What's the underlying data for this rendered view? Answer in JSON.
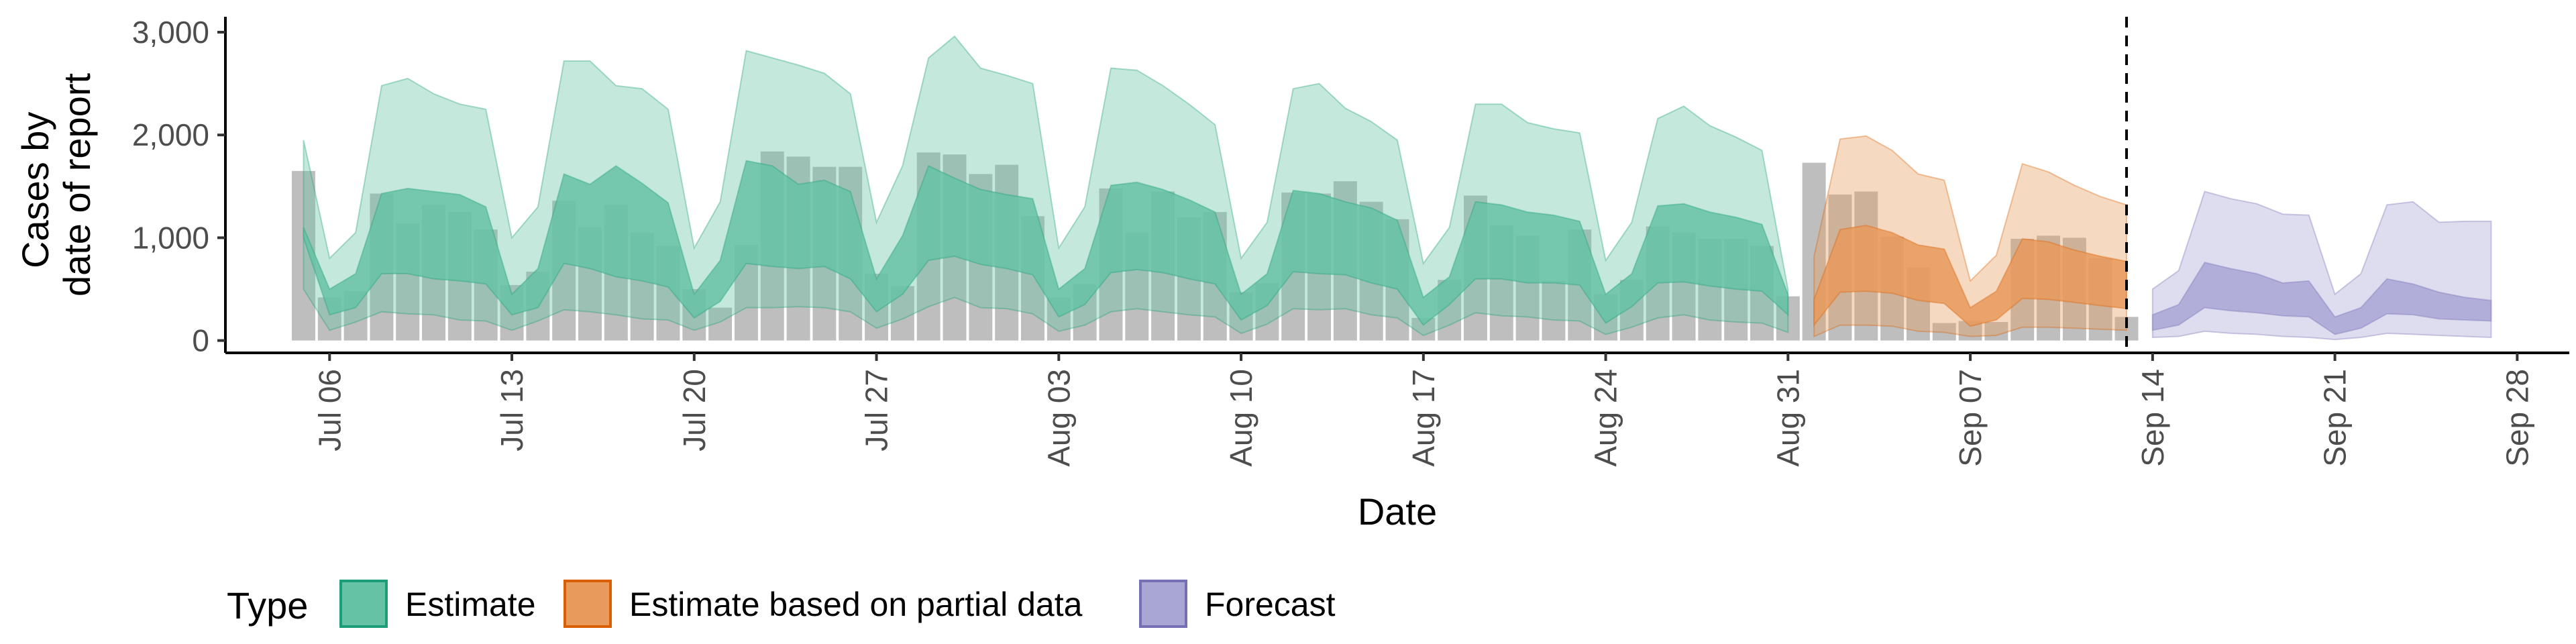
{
  "chart_data": {
    "type": "area",
    "xlabel": "Date",
    "ylabel_lines": [
      "Cases by",
      "date of report"
    ],
    "ylim": [
      -120,
      3150
    ],
    "xlim": [
      "2020-07-02",
      "2020-09-30"
    ],
    "y_ticks": [
      0,
      1000,
      2000,
      3000
    ],
    "y_tick_labels": [
      "0",
      "1,000",
      "2,000",
      "3,000"
    ],
    "x_ticks": [
      "2020-07-06",
      "2020-07-13",
      "2020-07-20",
      "2020-07-27",
      "2020-08-03",
      "2020-08-10",
      "2020-08-17",
      "2020-08-24",
      "2020-08-31",
      "2020-09-07",
      "2020-09-14",
      "2020-09-21",
      "2020-09-28"
    ],
    "x_tick_labels": [
      "Jul 06",
      "Jul 13",
      "Jul 20",
      "Jul 27",
      "Aug 03",
      "Aug 10",
      "Aug 17",
      "Aug 24",
      "Aug 31",
      "Sep 07",
      "Sep 14",
      "Sep 21",
      "Sep 28"
    ],
    "grid": false,
    "vline": "2020-09-13",
    "legend": {
      "title": "Type",
      "position": "bottom",
      "entries": [
        {
          "label": "Estimate",
          "fill": "#66c2a5",
          "stroke": "#1b9e77"
        },
        {
          "label": "Estimate based on partial data",
          "fill": "#e89a5c",
          "stroke": "#d95f02"
        },
        {
          "label": "Forecast",
          "fill": "#a9a6d6",
          "stroke": "#7570b3"
        }
      ]
    },
    "bars": {
      "color": "#b3b3b3",
      "x": [
        "2020-07-05",
        "2020-07-06",
        "2020-07-07",
        "2020-07-08",
        "2020-07-09",
        "2020-07-10",
        "2020-07-11",
        "2020-07-12",
        "2020-07-13",
        "2020-07-14",
        "2020-07-15",
        "2020-07-16",
        "2020-07-17",
        "2020-07-18",
        "2020-07-19",
        "2020-07-20",
        "2020-07-21",
        "2020-07-22",
        "2020-07-23",
        "2020-07-24",
        "2020-07-25",
        "2020-07-26",
        "2020-07-27",
        "2020-07-28",
        "2020-07-29",
        "2020-07-30",
        "2020-07-31",
        "2020-08-01",
        "2020-08-02",
        "2020-08-03",
        "2020-08-04",
        "2020-08-05",
        "2020-08-06",
        "2020-08-07",
        "2020-08-08",
        "2020-08-09",
        "2020-08-10",
        "2020-08-11",
        "2020-08-12",
        "2020-08-13",
        "2020-08-14",
        "2020-08-15",
        "2020-08-16",
        "2020-08-17",
        "2020-08-18",
        "2020-08-19",
        "2020-08-20",
        "2020-08-21",
        "2020-08-22",
        "2020-08-23",
        "2020-08-24",
        "2020-08-25",
        "2020-08-26",
        "2020-08-27",
        "2020-08-28",
        "2020-08-29",
        "2020-08-30",
        "2020-08-31",
        "2020-09-01",
        "2020-09-02",
        "2020-09-03",
        "2020-09-04",
        "2020-09-05",
        "2020-09-06",
        "2020-09-07",
        "2020-09-08",
        "2020-09-09",
        "2020-09-10",
        "2020-09-11",
        "2020-09-12",
        "2020-09-13"
      ],
      "values": [
        1650,
        420,
        480,
        1430,
        1140,
        1320,
        1250,
        1080,
        540,
        670,
        1360,
        1100,
        1320,
        1050,
        920,
        500,
        320,
        930,
        1840,
        1790,
        1690,
        1690,
        650,
        530,
        1830,
        1810,
        1620,
        1710,
        1210,
        420,
        550,
        1480,
        1050,
        1450,
        1200,
        1250,
        470,
        560,
        1440,
        1430,
        1550,
        1350,
        1180,
        220,
        590,
        1410,
        1120,
        1020,
        580,
        1080,
        450,
        590,
        1110,
        1050,
        990,
        990,
        920,
        430,
        1730,
        1420,
        1450,
        1010,
        710,
        170,
        190,
        180,
        990,
        1020,
        1000,
        800,
        230
      ]
    },
    "series": [
      {
        "name": "Estimate",
        "fill": "#66c2a5",
        "stroke": "#1b9e77",
        "x": [
          "2020-07-05",
          "2020-07-06",
          "2020-07-07",
          "2020-07-08",
          "2020-07-09",
          "2020-07-10",
          "2020-07-11",
          "2020-07-12",
          "2020-07-13",
          "2020-07-14",
          "2020-07-15",
          "2020-07-16",
          "2020-07-17",
          "2020-07-18",
          "2020-07-19",
          "2020-07-20",
          "2020-07-21",
          "2020-07-22",
          "2020-07-23",
          "2020-07-24",
          "2020-07-25",
          "2020-07-26",
          "2020-07-27",
          "2020-07-28",
          "2020-07-29",
          "2020-07-30",
          "2020-07-31",
          "2020-08-01",
          "2020-08-02",
          "2020-08-03",
          "2020-08-04",
          "2020-08-05",
          "2020-08-06",
          "2020-08-07",
          "2020-08-08",
          "2020-08-09",
          "2020-08-10",
          "2020-08-11",
          "2020-08-12",
          "2020-08-13",
          "2020-08-14",
          "2020-08-15",
          "2020-08-16",
          "2020-08-17",
          "2020-08-18",
          "2020-08-19",
          "2020-08-20",
          "2020-08-21",
          "2020-08-22",
          "2020-08-23",
          "2020-08-24",
          "2020-08-25",
          "2020-08-26",
          "2020-08-27",
          "2020-08-28",
          "2020-08-29",
          "2020-08-30",
          "2020-08-31"
        ],
        "lower90": [
          500,
          100,
          180,
          280,
          260,
          250,
          200,
          190,
          100,
          190,
          300,
          280,
          250,
          210,
          200,
          100,
          180,
          320,
          320,
          330,
          320,
          280,
          120,
          210,
          330,
          420,
          320,
          310,
          260,
          90,
          150,
          280,
          310,
          280,
          250,
          230,
          70,
          160,
          310,
          300,
          310,
          250,
          220,
          50,
          150,
          270,
          240,
          230,
          200,
          190,
          60,
          130,
          220,
          250,
          200,
          180,
          170,
          80
        ],
        "upper90": [
          1950,
          800,
          1050,
          2480,
          2550,
          2400,
          2300,
          2250,
          1000,
          1300,
          2720,
          2720,
          2480,
          2450,
          2250,
          900,
          1350,
          2820,
          2750,
          2680,
          2600,
          2400,
          1150,
          1700,
          2750,
          2960,
          2650,
          2580,
          2500,
          900,
          1300,
          2650,
          2630,
          2480,
          2300,
          2100,
          800,
          1150,
          2450,
          2500,
          2260,
          2130,
          1950,
          750,
          1100,
          2300,
          2300,
          2120,
          2060,
          2020,
          780,
          1150,
          2160,
          2280,
          2090,
          1980,
          1850,
          500
        ],
        "lower50": [
          1000,
          250,
          320,
          650,
          650,
          600,
          580,
          550,
          250,
          320,
          750,
          700,
          620,
          580,
          520,
          220,
          380,
          750,
          720,
          700,
          720,
          600,
          280,
          450,
          780,
          820,
          740,
          700,
          640,
          230,
          350,
          660,
          690,
          660,
          600,
          550,
          200,
          340,
          670,
          650,
          640,
          560,
          500,
          150,
          350,
          600,
          600,
          560,
          560,
          540,
          170,
          330,
          560,
          570,
          530,
          500,
          480,
          250
        ],
        "upper50": [
          1100,
          500,
          650,
          1430,
          1480,
          1450,
          1420,
          1300,
          450,
          700,
          1620,
          1520,
          1700,
          1530,
          1340,
          450,
          780,
          1750,
          1700,
          1520,
          1560,
          1450,
          600,
          1020,
          1700,
          1580,
          1470,
          1420,
          1380,
          500,
          700,
          1510,
          1540,
          1470,
          1370,
          1250,
          450,
          650,
          1460,
          1430,
          1350,
          1290,
          1170,
          420,
          620,
          1350,
          1320,
          1250,
          1220,
          1160,
          450,
          650,
          1310,
          1330,
          1250,
          1200,
          1130,
          450
        ]
      },
      {
        "name": "Estimate based on partial data",
        "fill": "#e89a5c",
        "stroke": "#d95f02",
        "x": [
          "2020-09-01",
          "2020-09-02",
          "2020-09-03",
          "2020-09-04",
          "2020-09-05",
          "2020-09-06",
          "2020-09-07",
          "2020-09-08",
          "2020-09-09",
          "2020-09-10",
          "2020-09-11",
          "2020-09-12",
          "2020-09-13"
        ],
        "lower90": [
          40,
          150,
          150,
          140,
          90,
          80,
          40,
          50,
          130,
          130,
          120,
          110,
          100
        ],
        "upper90": [
          820,
          1960,
          1990,
          1850,
          1620,
          1560,
          580,
          830,
          1720,
          1640,
          1510,
          1400,
          1320
        ],
        "lower50": [
          150,
          470,
          480,
          460,
          390,
          360,
          140,
          200,
          410,
          400,
          370,
          340,
          310
        ],
        "upper50": [
          400,
          1080,
          1120,
          1050,
          930,
          890,
          320,
          480,
          990,
          960,
          880,
          820,
          770
        ]
      },
      {
        "name": "Forecast",
        "fill": "#a9a6d6",
        "stroke": "#7570b3",
        "x": [
          "2020-09-14",
          "2020-09-15",
          "2020-09-16",
          "2020-09-17",
          "2020-09-18",
          "2020-09-19",
          "2020-09-20",
          "2020-09-21",
          "2020-09-22",
          "2020-09-23",
          "2020-09-24",
          "2020-09-25",
          "2020-09-26",
          "2020-09-27"
        ],
        "lower90": [
          30,
          40,
          90,
          70,
          60,
          40,
          30,
          10,
          30,
          70,
          60,
          50,
          40,
          30
        ],
        "upper90": [
          500,
          680,
          1450,
          1380,
          1330,
          1230,
          1220,
          450,
          650,
          1320,
          1350,
          1150,
          1160,
          1160
        ],
        "lower50": [
          100,
          150,
          320,
          290,
          270,
          240,
          230,
          60,
          120,
          260,
          250,
          210,
          200,
          190
        ],
        "upper50": [
          250,
          350,
          760,
          700,
          650,
          560,
          580,
          230,
          320,
          600,
          550,
          470,
          420,
          390
        ]
      }
    ]
  }
}
